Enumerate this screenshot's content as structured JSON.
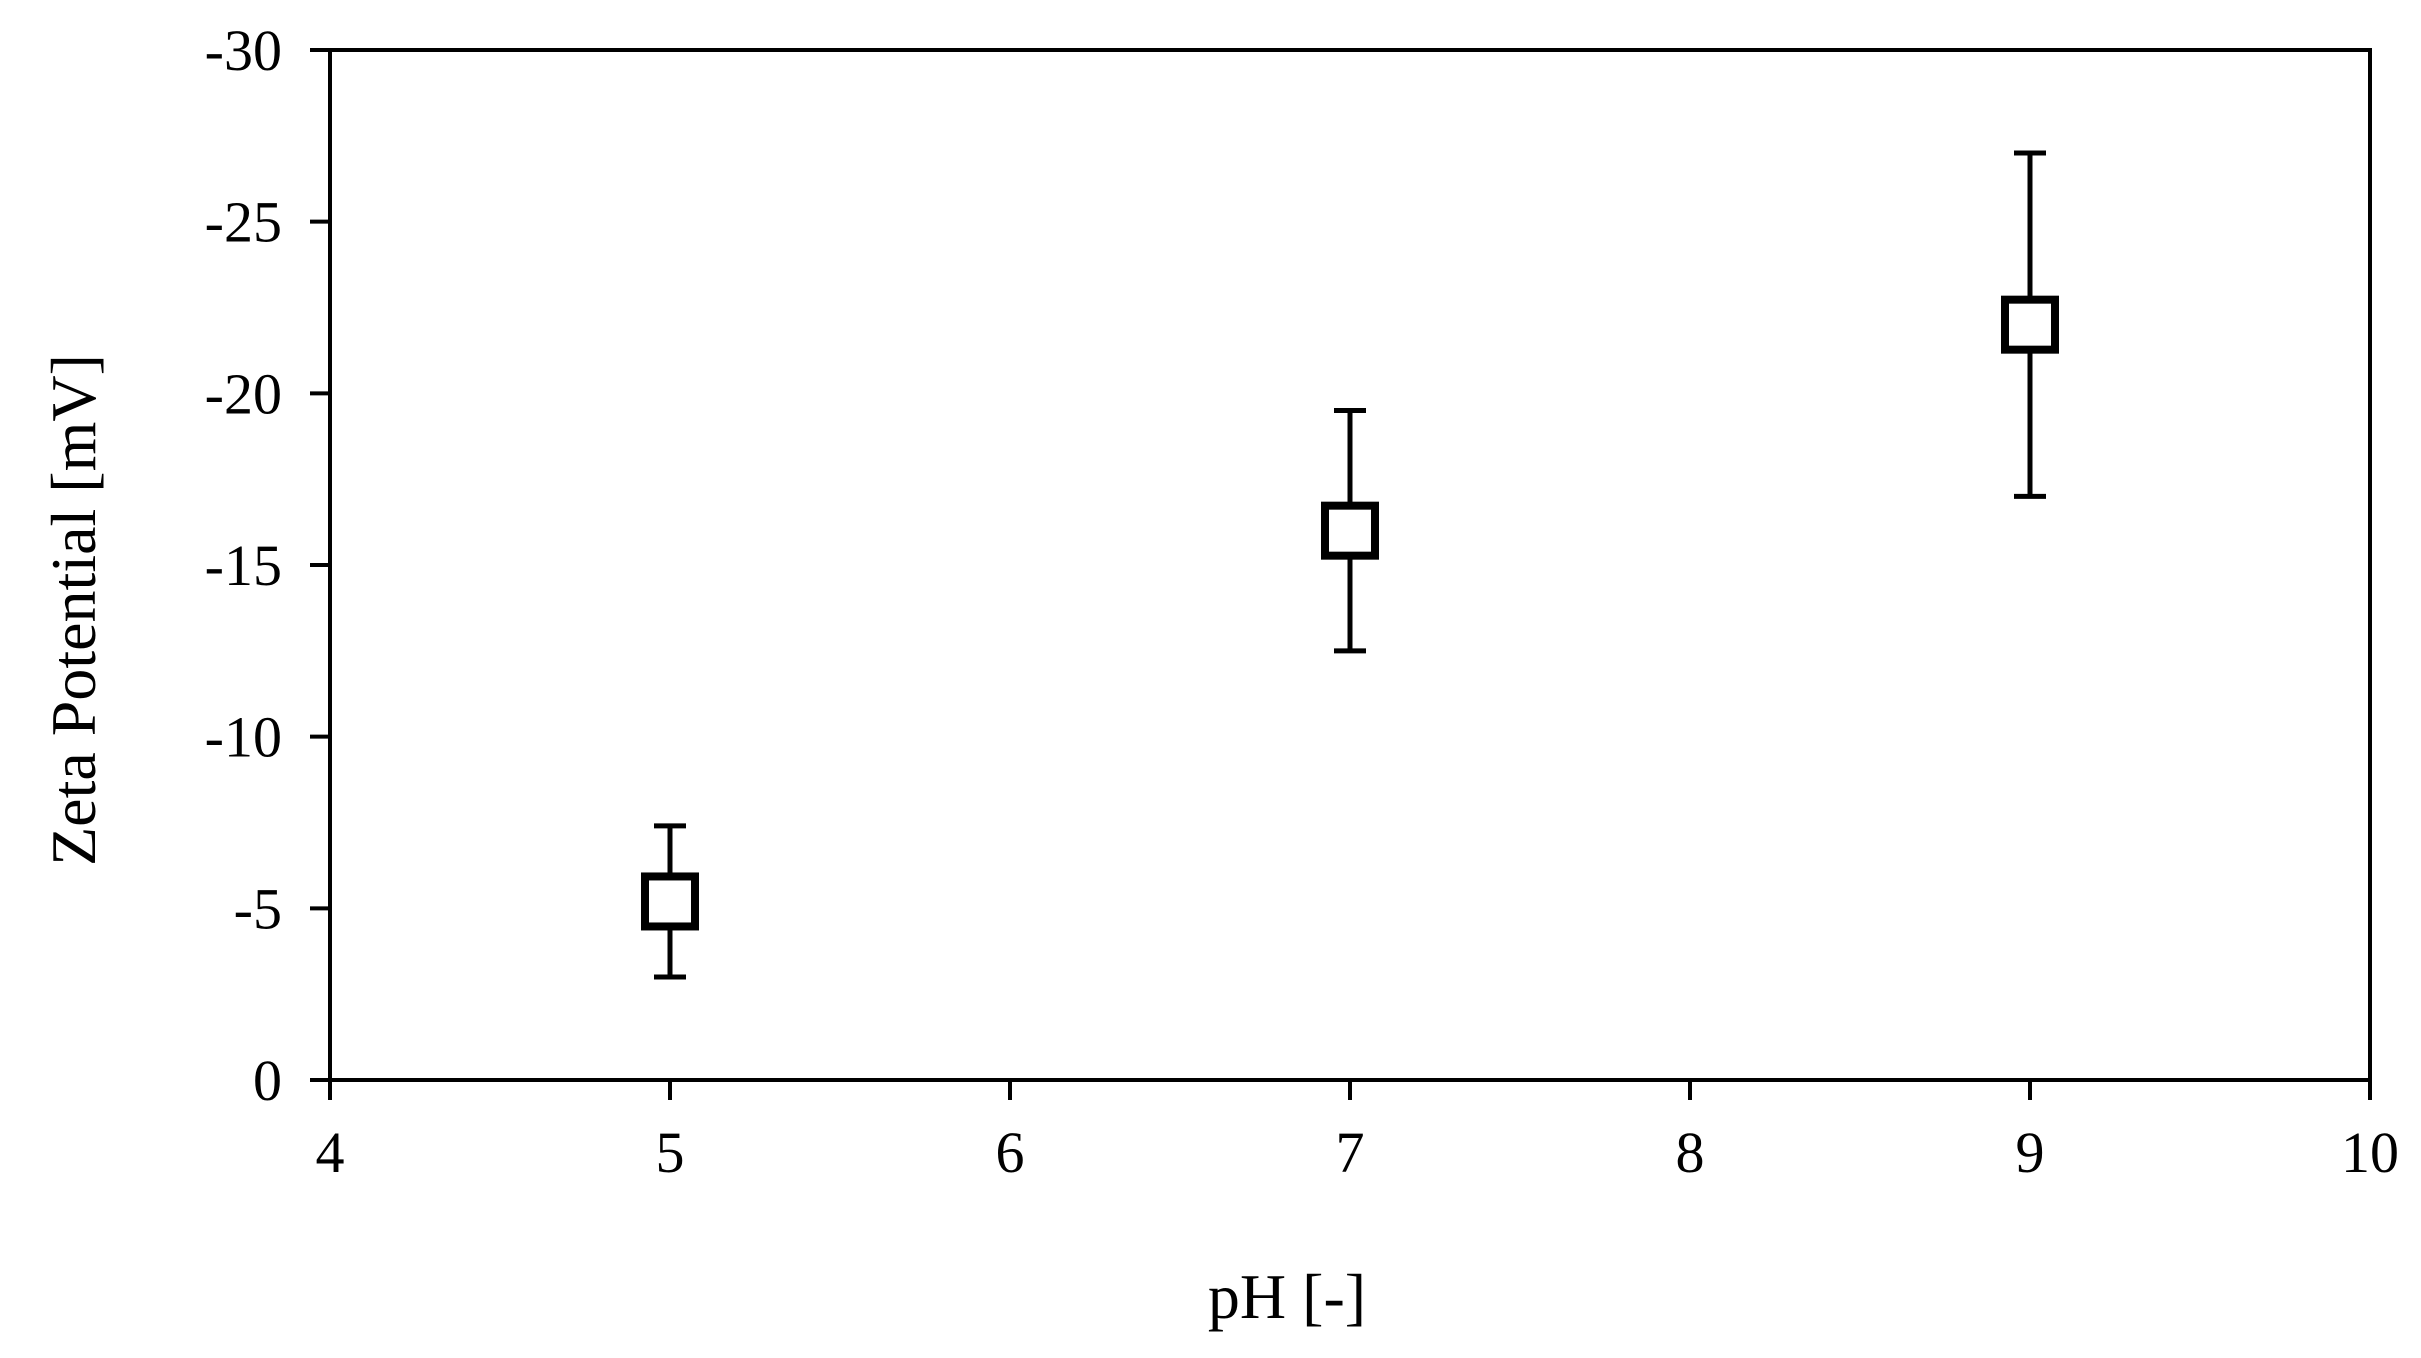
{
  "chart_data": {
    "type": "scatter",
    "xlabel": "pH [-]",
    "ylabel": "Zeta Potential [mV]",
    "xlim": [
      4,
      10
    ],
    "ylim": [
      0,
      -30
    ],
    "xticks": [
      4,
      5,
      6,
      7,
      8,
      9,
      10
    ],
    "yticks": [
      0,
      -5,
      -10,
      -15,
      -20,
      -25,
      -30
    ],
    "y_axis_inverted": true,
    "grid": false,
    "marker": "open-square",
    "color": "#000000",
    "points": [
      {
        "x": 5,
        "y": -5.2,
        "err_low": -3.0,
        "err_high": -7.4
      },
      {
        "x": 7,
        "y": -16.0,
        "err_low": -12.5,
        "err_high": -19.5
      },
      {
        "x": 9,
        "y": -22.0,
        "err_low": -17.0,
        "err_high": -27.0
      }
    ]
  }
}
